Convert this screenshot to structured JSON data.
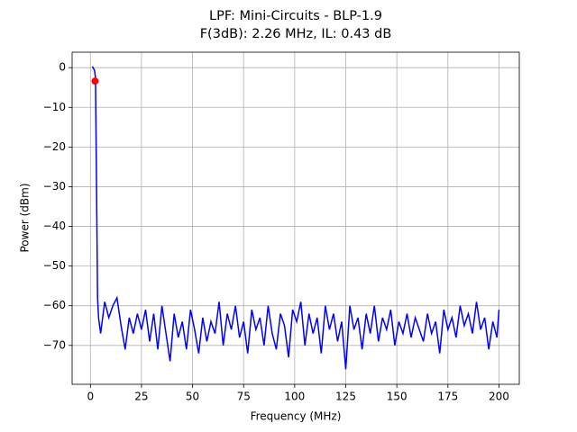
{
  "chart_data": {
    "type": "line",
    "title": "LPF: Mini-Circuits - BLP-1.9",
    "subtitle": "F(3dB): 2.26 MHz, IL: 0.43 dB",
    "x_label": "Frequency (MHz)",
    "y_label": "Power (dBm)",
    "xlim": [
      -8.95,
      209.95
    ],
    "ylim": [
      -79.8,
      3.9
    ],
    "xticks": [
      0,
      25,
      50,
      75,
      100,
      125,
      150,
      175,
      200
    ],
    "yticks": [
      0,
      {
        "value": -10,
        "label": "−10"
      },
      {
        "value": -20,
        "label": "−20"
      },
      {
        "value": -30,
        "label": "−30"
      },
      {
        "value": -40,
        "label": "−40"
      },
      {
        "value": -50,
        "label": "−50"
      },
      {
        "value": -60,
        "label": "−60"
      },
      {
        "value": -70,
        "label": "−70"
      }
    ],
    "grid": true,
    "series": [
      {
        "color": "#0000ff",
        "x": [
          1,
          1.5,
          2,
          2.5,
          3,
          3.5,
          4,
          5,
          7,
          9,
          11,
          13,
          15,
          17,
          19,
          21,
          23,
          25,
          27,
          29,
          31,
          33,
          35,
          37,
          39,
          41,
          43,
          45,
          47,
          49,
          51,
          53,
          55,
          57,
          59,
          61,
          63,
          65,
          67,
          69,
          71,
          73,
          75,
          77,
          79,
          81,
          83,
          85,
          87,
          89,
          91,
          93,
          95,
          97,
          99,
          101,
          103,
          105,
          107,
          109,
          111,
          113,
          115,
          117,
          119,
          121,
          123,
          125,
          127,
          129,
          131,
          133,
          135,
          137,
          139,
          141,
          143,
          145,
          147,
          149,
          151,
          153,
          155,
          157,
          159,
          161,
          163,
          165,
          167,
          169,
          171,
          173,
          175,
          177,
          179,
          181,
          183,
          185,
          187,
          189,
          191,
          193,
          195,
          197,
          199,
          200
        ],
        "values": [
          0.3,
          -0.2,
          -0.6,
          -2.5,
          -30,
          -58,
          -63,
          -67,
          -59,
          -63,
          -60,
          -58,
          -65,
          -71,
          -63,
          -67,
          -62,
          -66,
          -61,
          -69,
          -62,
          -71,
          -60,
          -67,
          -74,
          -62,
          -68,
          -64,
          -71,
          -61,
          -66,
          -72,
          -63,
          -69,
          -64,
          -67,
          -59,
          -70,
          -62,
          -66,
          -60,
          -68,
          -64,
          -72,
          -61,
          -66,
          -63,
          -70,
          -60,
          -67,
          -71,
          -62,
          -65,
          -73,
          -61,
          -64,
          -59,
          -70,
          -62,
          -67,
          -63,
          -72,
          -60,
          -66,
          -62,
          -69,
          -64,
          -76,
          -60,
          -66,
          -63,
          -71,
          -62,
          -67,
          -60,
          -69,
          -63,
          -66,
          -61,
          -70,
          -64,
          -67,
          -62,
          -68,
          -63,
          -66,
          -69,
          -62,
          -67,
          -64,
          -72,
          -61,
          -66,
          -63,
          -68,
          -60,
          -65,
          -62,
          -67,
          -59,
          -66,
          -63,
          -71,
          -64,
          -68,
          -61
        ]
      }
    ],
    "marker": {
      "x": 2.26,
      "y": -3.4,
      "color": "#ff0000"
    }
  }
}
